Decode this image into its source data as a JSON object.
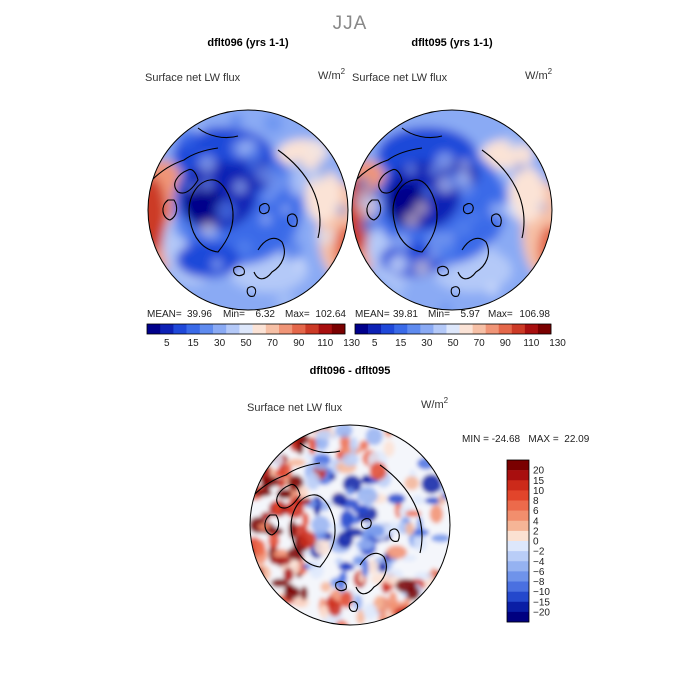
{
  "figure": {
    "title": "JJA",
    "panels": [
      {
        "title": "dflt096 (yrs 1-1)",
        "variable": "Surface net LW flux",
        "units": "W/m",
        "units_exp": "2",
        "stats": {
          "mean_label": "MEAN=",
          "mean": "39.96",
          "min_label": "Min=",
          "min": "6.32",
          "max_label": "Max=",
          "max": "102.64"
        }
      },
      {
        "title": "dflt095 (yrs 1-1)",
        "variable": "Surface net LW flux",
        "units": "W/m",
        "units_exp": "2",
        "stats": {
          "mean_label": "MEAN=",
          "mean": "39.81",
          "min_label": "Min=",
          "min": "5.97",
          "max_label": "Max=",
          "max": "106.98"
        }
      },
      {
        "title": "dflt096 - dflt095",
        "variable": "Surface net LW flux",
        "units": "W/m",
        "units_exp": "2",
        "stats_text": "MIN = -24.68   MAX =  22.09"
      }
    ]
  },
  "chart_data": [
    {
      "type": "heatmap",
      "projection": "north-polar-stereographic",
      "title": "dflt096 (yrs 1-1)",
      "variable": "Surface net LW flux",
      "mean": 39.96,
      "min": 6.32,
      "max": 102.64,
      "colorbar": {
        "orientation": "horizontal",
        "levels": [
          5,
          15,
          30,
          50,
          70,
          90,
          110,
          130
        ],
        "tick_labels": [
          "5",
          "15",
          "30",
          "50",
          "70",
          "90",
          "110",
          "130"
        ],
        "colors": [
          "#00008b",
          "#0d21b5",
          "#1f48d9",
          "#3a6ae8",
          "#5f8bef",
          "#8aaaf4",
          "#b4c9f8",
          "#dde7fb",
          "#fbe3d6",
          "#f6c0a6",
          "#f09577",
          "#e4674a",
          "#cc3a26",
          "#a80f0f",
          "#7a0000"
        ]
      }
    },
    {
      "type": "heatmap",
      "projection": "north-polar-stereographic",
      "title": "dflt095 (yrs 1-1)",
      "variable": "Surface net LW flux",
      "mean": 39.81,
      "min": 5.97,
      "max": 106.98,
      "colorbar": {
        "orientation": "horizontal",
        "levels": [
          5,
          15,
          30,
          50,
          70,
          90,
          110,
          130
        ],
        "tick_labels": [
          "5",
          "15",
          "30",
          "50",
          "70",
          "90",
          "110",
          "130"
        ],
        "colors": [
          "#00008b",
          "#0d21b5",
          "#1f48d9",
          "#3a6ae8",
          "#5f8bef",
          "#8aaaf4",
          "#b4c9f8",
          "#dde7fb",
          "#fbe3d6",
          "#f6c0a6",
          "#f09577",
          "#e4674a",
          "#cc3a26",
          "#a80f0f",
          "#7a0000"
        ]
      }
    },
    {
      "type": "heatmap",
      "projection": "north-polar-stereographic",
      "title": "dflt096 - dflt095",
      "variable": "Surface net LW flux",
      "min": -24.68,
      "max": 22.09,
      "colorbar": {
        "orientation": "vertical",
        "levels": [
          20,
          15,
          10,
          8,
          6,
          4,
          2,
          0,
          -2,
          -4,
          -6,
          -8,
          -10,
          -15,
          -20
        ],
        "tick_labels": [
          "20",
          "15",
          "10",
          "8",
          "6",
          "4",
          "2",
          "0",
          "−2",
          "−4",
          "−6",
          "−8",
          "−10",
          "−15",
          "−20"
        ],
        "colors": [
          "#7a0000",
          "#a80f0f",
          "#cc2a1a",
          "#e2452b",
          "#ec6a4b",
          "#f28e6d",
          "#f6b596",
          "#fbe1d2",
          "#dde7fb",
          "#b9cdf7",
          "#95b2f1",
          "#6f93ea",
          "#4a70e0",
          "#2448cc",
          "#0a1ea5",
          "#000080"
        ]
      }
    }
  ]
}
